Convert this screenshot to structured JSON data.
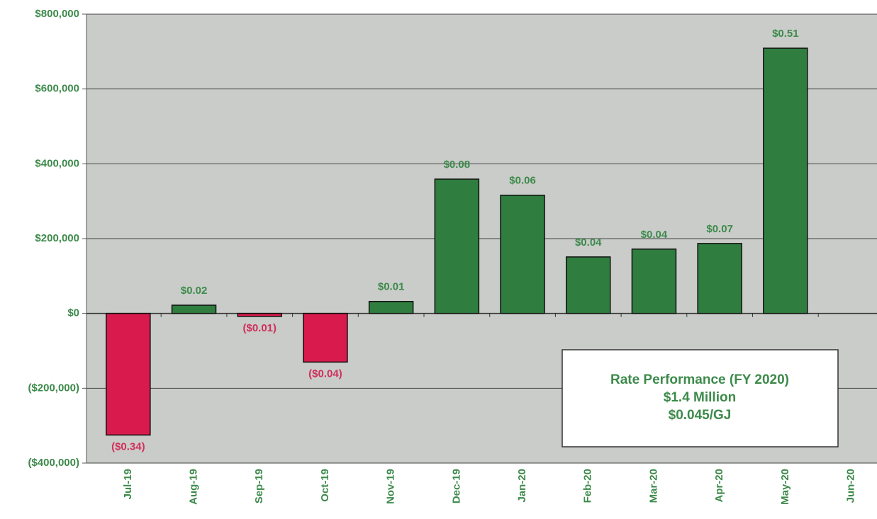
{
  "chart_data": {
    "type": "bar",
    "categories": [
      "Jul-19",
      "Aug-19",
      "Sep-19",
      "Oct-19",
      "Nov-19",
      "Dec-19",
      "Jan-20",
      "Feb-20",
      "Mar-20",
      "Apr-20",
      "May-20",
      "Jun-20"
    ],
    "values": [
      -325000,
      22000,
      -8000,
      -130000,
      32000,
      359000,
      316000,
      151000,
      172000,
      187000,
      709000,
      null
    ],
    "bar_labels": [
      "($0.34)",
      "$0.02",
      "($0.01)",
      "($0.04)",
      "$0.01",
      "$0.08",
      "$0.06",
      "$0.04",
      "$0.04",
      "$0.07",
      "$0.51",
      null
    ],
    "positive_color": "#2f7d3f",
    "negative_color": "#d81b4c",
    "ylim": [
      -400000,
      800000
    ],
    "yticks": [
      {
        "value": -400000,
        "label": "($400,000)"
      },
      {
        "value": -200000,
        "label": "($200,000)"
      },
      {
        "value": 0,
        "label": "$0"
      },
      {
        "value": 200000,
        "label": "$200,000"
      },
      {
        "value": 400000,
        "label": "$400,000"
      },
      {
        "value": 600000,
        "label": "$600,000"
      },
      {
        "value": 800000,
        "label": "$800,000"
      }
    ],
    "grid": true,
    "annotation": [
      "Rate Performance (FY 2020)",
      "$1.4 Million",
      "$0.045/GJ"
    ]
  }
}
